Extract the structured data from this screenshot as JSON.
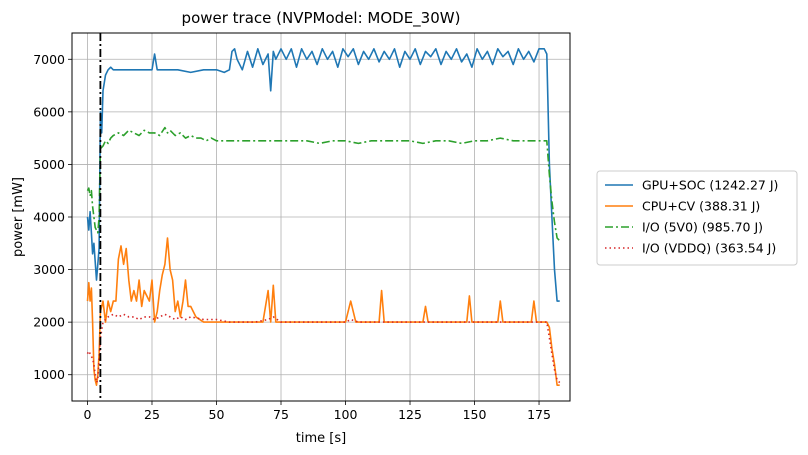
{
  "chart_data": {
    "type": "line",
    "title": "power trace (NVPModel: MODE_30W)",
    "xlabel": "time [s]",
    "ylabel": "power [mW]",
    "xlim": [
      -6,
      187
    ],
    "ylim": [
      500,
      7500
    ],
    "xticks": [
      0,
      25,
      50,
      75,
      100,
      125,
      150,
      175
    ],
    "yticks": [
      1000,
      2000,
      3000,
      4000,
      5000,
      6000,
      7000
    ],
    "grid": true,
    "legend_position": "outside-right",
    "vertical_marker": {
      "x": 5,
      "color": "#000000",
      "style": "dashdot"
    },
    "series": [
      {
        "name": "GPU+SOC (1242.27 J)",
        "color": "#1f77b4",
        "style": "solid",
        "x": [
          0,
          0.5,
          1,
          1.5,
          2,
          2.5,
          3,
          3.5,
          4,
          4.5,
          5,
          5.5,
          6,
          7,
          8,
          9,
          10,
          12,
          15,
          20,
          25,
          26,
          27,
          28,
          30,
          35,
          40,
          45,
          50,
          53,
          55,
          56,
          57,
          58,
          60,
          62,
          64,
          66,
          68,
          70,
          71,
          72,
          73,
          75,
          77,
          79,
          81,
          83,
          85,
          87,
          89,
          91,
          93,
          95,
          97,
          99,
          101,
          103,
          105,
          107,
          109,
          111,
          113,
          115,
          117,
          119,
          121,
          123,
          125,
          127,
          129,
          131,
          133,
          135,
          137,
          139,
          141,
          143,
          145,
          147,
          149,
          151,
          153,
          155,
          157,
          159,
          161,
          163,
          165,
          167,
          169,
          171,
          173,
          175,
          177,
          178,
          179,
          180,
          181,
          182,
          183
        ],
        "y": [
          4000,
          3750,
          4100,
          3700,
          3300,
          3500,
          3150,
          2800,
          3100,
          3400,
          6000,
          5600,
          6400,
          6700,
          6800,
          6850,
          6800,
          6800,
          6800,
          6800,
          6800,
          7100,
          6800,
          6800,
          6800,
          6800,
          6750,
          6800,
          6800,
          6750,
          6800,
          7150,
          7200,
          7000,
          6800,
          7150,
          6850,
          7200,
          6900,
          7100,
          6400,
          7150,
          7000,
          7200,
          7000,
          7200,
          6850,
          7200,
          7000,
          7150,
          6900,
          7200,
          7000,
          7150,
          6850,
          7200,
          7050,
          7200,
          6900,
          7150,
          7000,
          7200,
          6950,
          7150,
          7000,
          7200,
          6850,
          7150,
          7000,
          7200,
          6900,
          7150,
          7050,
          7200,
          6900,
          7150,
          7000,
          7200,
          6950,
          7100,
          6850,
          7200,
          7000,
          7150,
          6900,
          7200,
          7050,
          7150,
          6900,
          7200,
          7000,
          7150,
          6950,
          7200,
          7200,
          7100,
          5000,
          4000,
          3000,
          2400,
          2400
        ]
      },
      {
        "name": "CPU+CV (388.31 J)",
        "color": "#ff7f0e",
        "style": "solid",
        "x": [
          0,
          0.5,
          1,
          1.5,
          2,
          2.5,
          3,
          3.5,
          4,
          4.5,
          5,
          6,
          7,
          8,
          9,
          10,
          11,
          12,
          13,
          14,
          15,
          16,
          17,
          18,
          19,
          20,
          21,
          22,
          23,
          24,
          25,
          26,
          27,
          28,
          29,
          30,
          31,
          32,
          33,
          34,
          35,
          36,
          37,
          38,
          39,
          40,
          42,
          45,
          50,
          55,
          60,
          65,
          68,
          70,
          71,
          72,
          73,
          75,
          80,
          85,
          90,
          95,
          100,
          102,
          104,
          110,
          113,
          114,
          115,
          120,
          125,
          130,
          131,
          132,
          135,
          140,
          145,
          147,
          148,
          149,
          155,
          159,
          160,
          161,
          165,
          170,
          172,
          173,
          174,
          175,
          178,
          179,
          180,
          181,
          182,
          183
        ],
        "y": [
          2400,
          2750,
          2400,
          2650,
          2000,
          1100,
          900,
          800,
          1000,
          1400,
          2200,
          2400,
          2000,
          2400,
          2200,
          2400,
          2400,
          3200,
          3450,
          3100,
          3400,
          2800,
          2400,
          2600,
          2400,
          2800,
          2300,
          2600,
          2500,
          2400,
          2800,
          2000,
          2200,
          2600,
          2900,
          3100,
          3600,
          3000,
          2800,
          2200,
          2400,
          2100,
          2400,
          2800,
          2300,
          2300,
          2100,
          2000,
          2000,
          2000,
          2000,
          2000,
          2000,
          2600,
          2000,
          2700,
          2000,
          2000,
          2000,
          2000,
          2000,
          2000,
          2000,
          2400,
          2000,
          2000,
          2000,
          2600,
          2000,
          2000,
          2000,
          2000,
          2300,
          2000,
          2000,
          2000,
          2000,
          2000,
          2500,
          2000,
          2000,
          2000,
          2400,
          2000,
          2000,
          2000,
          2000,
          2400,
          2000,
          2000,
          2000,
          1900,
          1500,
          1200,
          800,
          800
        ]
      },
      {
        "name": "I/O (5V0) (985.70 J)",
        "color": "#2ca02c",
        "style": "dashdot",
        "x": [
          0,
          0.5,
          1,
          1.5,
          2,
          2.5,
          3,
          3.5,
          4,
          4.5,
          5,
          6,
          7,
          8,
          9,
          10,
          12,
          14,
          16,
          18,
          20,
          22,
          24,
          26,
          28,
          30,
          31,
          32,
          34,
          36,
          38,
          40,
          42,
          44,
          46,
          48,
          50,
          55,
          60,
          65,
          70,
          75,
          80,
          85,
          90,
          95,
          100,
          105,
          110,
          115,
          120,
          125,
          130,
          135,
          140,
          145,
          150,
          155,
          160,
          165,
          170,
          175,
          177,
          178,
          179,
          180,
          181,
          182,
          183
        ],
        "y": [
          4500,
          4550,
          4400,
          4500,
          4200,
          4000,
          3800,
          3750,
          3700,
          4000,
          5300,
          5350,
          5450,
          5400,
          5500,
          5550,
          5600,
          5550,
          5650,
          5600,
          5550,
          5650,
          5600,
          5600,
          5550,
          5700,
          5600,
          5650,
          5550,
          5600,
          5500,
          5550,
          5500,
          5500,
          5450,
          5500,
          5450,
          5450,
          5450,
          5450,
          5450,
          5450,
          5450,
          5450,
          5400,
          5450,
          5450,
          5400,
          5450,
          5450,
          5450,
          5450,
          5400,
          5450,
          5450,
          5400,
          5450,
          5450,
          5500,
          5450,
          5450,
          5450,
          5450,
          5450,
          4800,
          4300,
          3900,
          3600,
          3550
        ]
      },
      {
        "name": "I/O (VDDQ) (363.54 J)",
        "color": "#d62728",
        "style": "dotted",
        "x": [
          0,
          0.5,
          1,
          1.5,
          2,
          2.5,
          3,
          3.5,
          4,
          4.5,
          5,
          6,
          7,
          8,
          10,
          12,
          14,
          16,
          18,
          20,
          22,
          24,
          26,
          28,
          30,
          32,
          34,
          36,
          38,
          40,
          45,
          50,
          55,
          60,
          65,
          70,
          72,
          75,
          80,
          90,
          100,
          102,
          105,
          110,
          120,
          130,
          140,
          150,
          160,
          170,
          175,
          178,
          179,
          180,
          181,
          182,
          183
        ],
        "y": [
          1400,
          1450,
          1400,
          1350,
          1300,
          1200,
          1000,
          850,
          900,
          1300,
          1700,
          2000,
          2050,
          2100,
          2150,
          2100,
          2150,
          2100,
          2100,
          2050,
          2100,
          2100,
          2050,
          2100,
          2150,
          2100,
          2050,
          2100,
          2050,
          2100,
          2050,
          2050,
          2000,
          2000,
          2000,
          2050,
          2100,
          2000,
          2000,
          2000,
          2000,
          2050,
          2000,
          2000,
          2000,
          2000,
          2000,
          2000,
          2000,
          2000,
          2000,
          2000,
          1700,
          1400,
          1100,
          900,
          850
        ]
      }
    ]
  }
}
